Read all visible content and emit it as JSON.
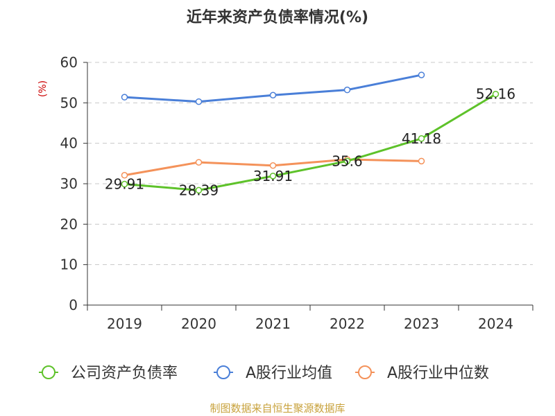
{
  "chart_data": {
    "type": "line",
    "title": "近年来资产负债率情况(%)",
    "ylabel": "(%)",
    "xlabel": "",
    "categories": [
      "2019",
      "2020",
      "2021",
      "2022",
      "2023",
      "2024"
    ],
    "ylim": [
      0,
      60
    ],
    "yticks": [
      0,
      10,
      20,
      30,
      40,
      50,
      60
    ],
    "grid": true,
    "legend_position": "bottom",
    "series": [
      {
        "name": "公司资产负债率",
        "color": "#5ec22a",
        "values": [
          29.91,
          28.39,
          31.91,
          35.6,
          41.18,
          52.16
        ],
        "data_labels": [
          "29.91",
          "28.39",
          "31.91",
          "35.6",
          "41.18",
          "52.16"
        ]
      },
      {
        "name": "A股行业均值",
        "color": "#4a7fd8",
        "values": [
          51.4,
          50.3,
          51.9,
          53.2,
          56.9,
          null
        ],
        "data_labels": []
      },
      {
        "name": "A股行业中位数",
        "color": "#f4925a",
        "values": [
          32.1,
          35.3,
          34.5,
          36.0,
          35.6,
          null
        ],
        "data_labels": []
      }
    ]
  },
  "footer": "制图数据来自恒生聚源数据库"
}
